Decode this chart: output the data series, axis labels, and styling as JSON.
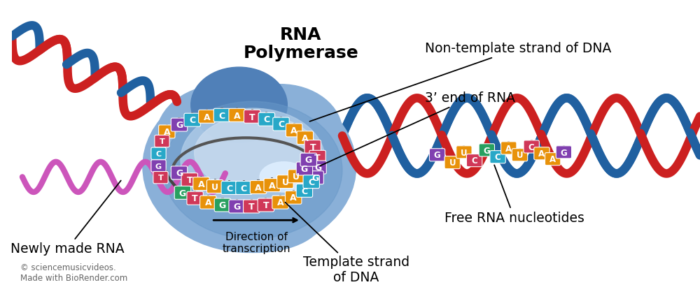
{
  "title": "RNA Polymerase Transcription Diagram",
  "background_color": "#ffffff",
  "figsize": [
    10.0,
    4.21
  ],
  "dpi": 100,
  "labels": {
    "rna_polymerase": "RNA\nPolymerase",
    "non_template": "Non-template strand of DNA",
    "three_prime": "3’ end of RNA",
    "newly_made": "Newly made RNA",
    "direction": "Direction of\ntranscription",
    "template_strand": "Template strand\nof DNA",
    "free_nucleotides": "Free RNA nucleotides",
    "copyright": "© sciencemusicvideos.\nMade with BioRender.com"
  },
  "colors": {
    "dna_blue": "#2060a0",
    "dna_red": "#cc2020",
    "rna_pink": "#cc55bb",
    "enzyme_body": "#8ab0d8",
    "enzyme_dark": "#5080b8",
    "enzyme_mid": "#6898c8",
    "enzyme_light": "#b0cce8",
    "enzyme_very_light": "#ccddf0",
    "text_dark": "#111111",
    "nuc_A_orange": "#e8920a",
    "nuc_T_teal": "#28a8c8",
    "nuc_G_purple": "#8040b0",
    "nuc_C_red": "#d03858",
    "nuc_U_orange": "#e8920a",
    "nuc_G2_green": "#28a060",
    "nuc_stem": "#666666"
  }
}
